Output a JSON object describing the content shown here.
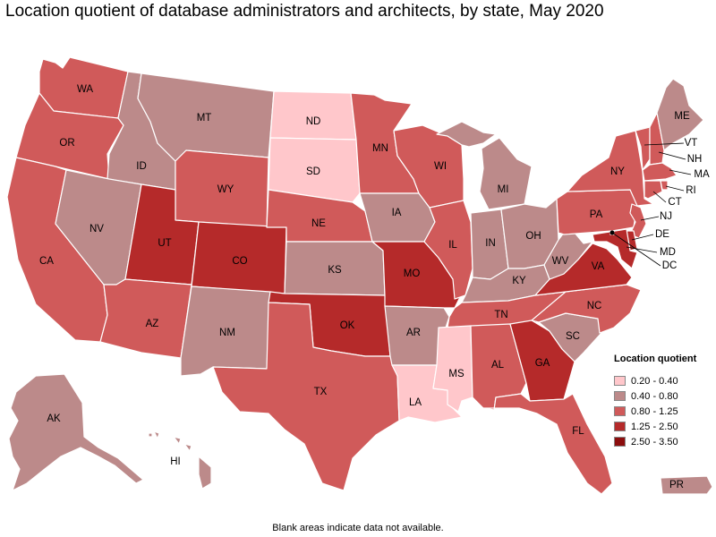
{
  "title": "Location quotient of database administrators and architects, by state, May 2020",
  "footnote": "Blank areas indicate data not available.",
  "legend": {
    "title": "Location quotient",
    "items": [
      {
        "label": "0.20 - 0.40",
        "color": "#FFC7CB"
      },
      {
        "label": "0.40 - 0.80",
        "color": "#BC8A8A"
      },
      {
        "label": "0.80 - 1.25",
        "color": "#D05A5A"
      },
      {
        "label": "1.25 - 2.50",
        "color": "#B52A2A"
      },
      {
        "label": "2.50 - 3.50",
        "color": "#8C0E0E"
      }
    ]
  },
  "states": {
    "WA": {
      "label": "WA",
      "bin": 2
    },
    "OR": {
      "label": "OR",
      "bin": 2
    },
    "CA": {
      "label": "CA",
      "bin": 2
    },
    "ID": {
      "label": "ID",
      "bin": 1
    },
    "NV": {
      "label": "NV",
      "bin": 1
    },
    "MT": {
      "label": "MT",
      "bin": 1
    },
    "WY": {
      "label": "WY",
      "bin": 2
    },
    "UT": {
      "label": "UT",
      "bin": 3
    },
    "AZ": {
      "label": "AZ",
      "bin": 2
    },
    "CO": {
      "label": "CO",
      "bin": 3
    },
    "NM": {
      "label": "NM",
      "bin": 1
    },
    "ND": {
      "label": "ND",
      "bin": 0
    },
    "SD": {
      "label": "SD",
      "bin": 0
    },
    "NE": {
      "label": "NE",
      "bin": 2
    },
    "KS": {
      "label": "KS",
      "bin": 1
    },
    "OK": {
      "label": "OK",
      "bin": 3
    },
    "TX": {
      "label": "TX",
      "bin": 2
    },
    "MN": {
      "label": "MN",
      "bin": 2
    },
    "IA": {
      "label": "IA",
      "bin": 1
    },
    "MO": {
      "label": "MO",
      "bin": 3
    },
    "AR": {
      "label": "AR",
      "bin": 1
    },
    "LA": {
      "label": "LA",
      "bin": 0
    },
    "WI": {
      "label": "WI",
      "bin": 2
    },
    "IL": {
      "label": "IL",
      "bin": 2
    },
    "MI": {
      "label": "MI",
      "bin": 1
    },
    "IN": {
      "label": "IN",
      "bin": 1
    },
    "OH": {
      "label": "OH",
      "bin": 1
    },
    "KY": {
      "label": "KY",
      "bin": 1
    },
    "TN": {
      "label": "TN",
      "bin": 2
    },
    "MS": {
      "label": "MS",
      "bin": 0
    },
    "AL": {
      "label": "AL",
      "bin": 2
    },
    "GA": {
      "label": "GA",
      "bin": 3
    },
    "FL": {
      "label": "FL",
      "bin": 2
    },
    "SC": {
      "label": "SC",
      "bin": 1
    },
    "NC": {
      "label": "NC",
      "bin": 2
    },
    "VA": {
      "label": "VA",
      "bin": 3
    },
    "WV": {
      "label": "WV",
      "bin": 1
    },
    "PA": {
      "label": "PA",
      "bin": 2
    },
    "NY": {
      "label": "NY",
      "bin": 2
    },
    "ME": {
      "label": "ME",
      "bin": 1
    },
    "VT": {
      "label": "VT",
      "bin": 2
    },
    "NH": {
      "label": "NH",
      "bin": 2
    },
    "MA": {
      "label": "MA",
      "bin": 2
    },
    "RI": {
      "label": "RI",
      "bin": 2
    },
    "CT": {
      "label": "CT",
      "bin": 2
    },
    "NJ": {
      "label": "NJ",
      "bin": 2
    },
    "DE": {
      "label": "DE",
      "bin": 3
    },
    "MD": {
      "label": "MD",
      "bin": 3
    },
    "DC": {
      "label": "DC",
      "bin": 4
    },
    "AK": {
      "label": "AK",
      "bin": 1
    },
    "HI": {
      "label": "HI",
      "bin": 1
    },
    "PR": {
      "label": "PR",
      "bin": 1
    }
  }
}
